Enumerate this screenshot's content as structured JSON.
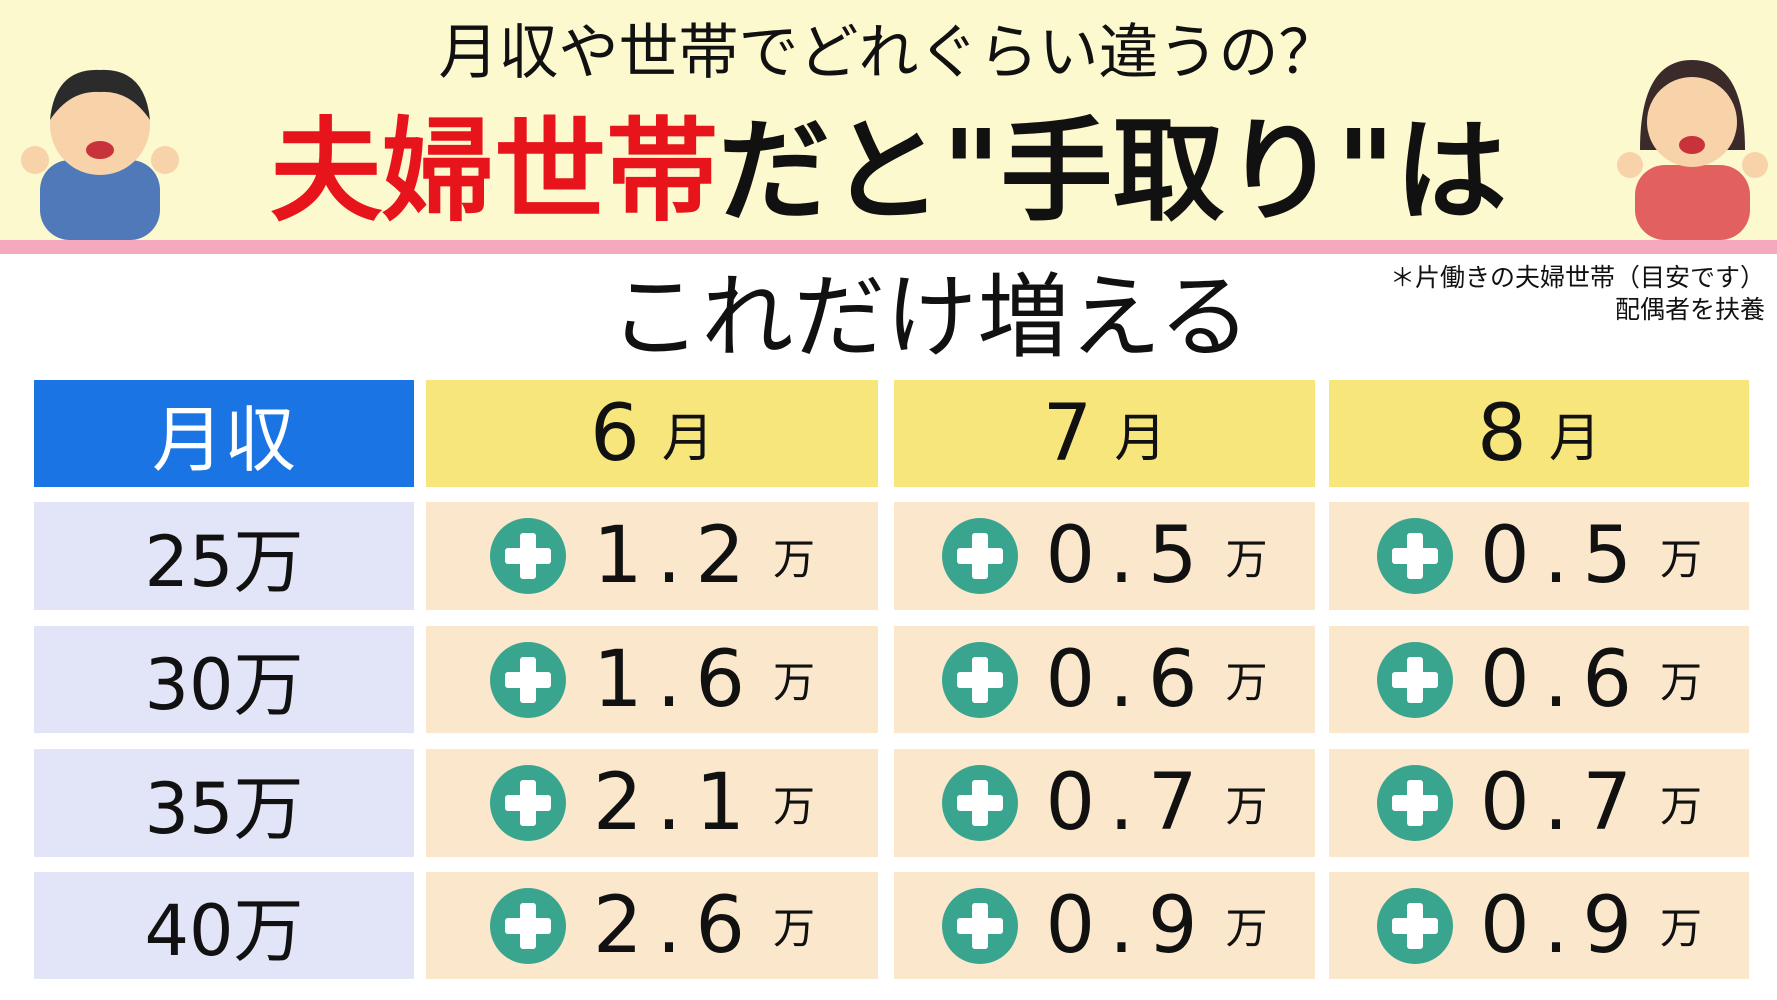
{
  "header": {
    "subtitle": "月収や世帯でどれぐらい違うの？",
    "title_highlight": "夫婦世帯",
    "title_rest": "だと\"手取り\"は",
    "title_line2": "これだけ増える"
  },
  "note": [
    "＊片働きの夫婦世帯（目安です）",
    "配偶者を扶養"
  ],
  "table": {
    "corner": "月収",
    "columns": [
      {
        "num": "6",
        "unit": "月"
      },
      {
        "num": "7",
        "unit": "月"
      },
      {
        "num": "8",
        "unit": "月"
      }
    ],
    "rows": [
      {
        "label": "25万",
        "cells": [
          {
            "value": 1.2,
            "unit": "万"
          },
          {
            "value": 0.5,
            "unit": "万"
          },
          {
            "value": 0.5,
            "unit": "万"
          }
        ]
      },
      {
        "label": "30万",
        "cells": [
          {
            "value": 1.6,
            "unit": "万"
          },
          {
            "value": 0.6,
            "unit": "万"
          },
          {
            "value": 0.6,
            "unit": "万"
          }
        ]
      },
      {
        "label": "35万",
        "cells": [
          {
            "value": 2.1,
            "unit": "万"
          },
          {
            "value": 0.7,
            "unit": "万"
          },
          {
            "value": 0.7,
            "unit": "万"
          }
        ]
      },
      {
        "label": "40万",
        "cells": [
          {
            "value": 2.6,
            "unit": "万"
          },
          {
            "value": 0.9,
            "unit": "万"
          },
          {
            "value": 0.9,
            "unit": "万"
          }
        ]
      }
    ]
  }
}
